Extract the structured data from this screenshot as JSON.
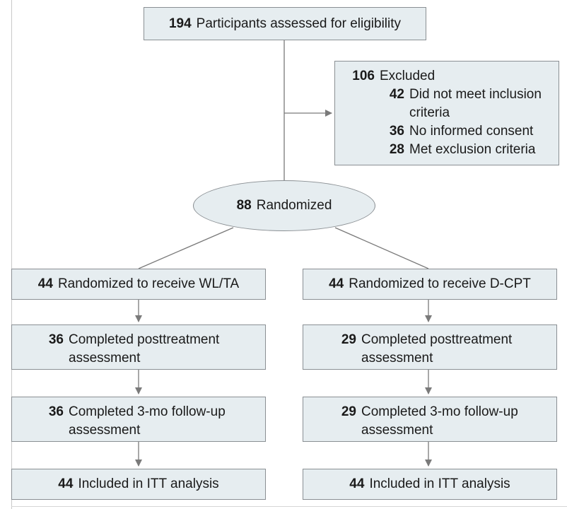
{
  "assessed": {
    "n": "194",
    "text": "Participants assessed for eligibility"
  },
  "excluded": {
    "n": "106",
    "text": "Excluded",
    "reasons": [
      {
        "n": "42",
        "text": "Did not meet inclusion",
        "cont": "criteria"
      },
      {
        "n": "36",
        "text": "No informed consent"
      },
      {
        "n": "28",
        "text": "Met exclusion criteria"
      }
    ]
  },
  "randomized": {
    "n": "88",
    "text": "Randomized"
  },
  "arms": {
    "left": {
      "allocation": {
        "n": "44",
        "text": "Randomized to receive WL/TA"
      },
      "post": {
        "n": "36",
        "text": "Completed posttreatment",
        "cont": "assessment"
      },
      "followup": {
        "n": "36",
        "text": "Completed 3-mo follow-up",
        "cont": "assessment"
      },
      "itt": {
        "n": "44",
        "text": "Included in ITT analysis"
      }
    },
    "right": {
      "allocation": {
        "n": "44",
        "text": "Randomized to receive D-CPT"
      },
      "post": {
        "n": "29",
        "text": "Completed posttreatment",
        "cont": "assessment"
      },
      "followup": {
        "n": "29",
        "text": "Completed 3-mo follow-up",
        "cont": "assessment"
      },
      "itt": {
        "n": "44",
        "text": "Included in ITT analysis"
      }
    }
  },
  "colors": {
    "box_fill": "#e6edf0",
    "box_border": "#8a8f93",
    "line": "#7a7a7a"
  }
}
